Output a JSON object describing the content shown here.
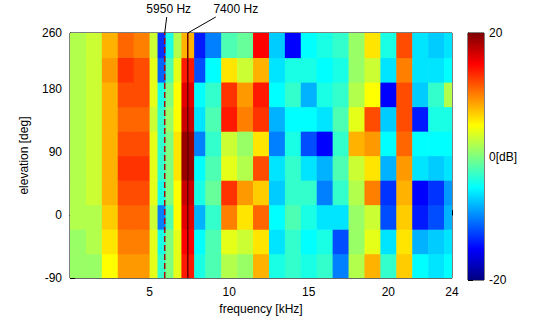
{
  "chart_data": {
    "type": "heatmap",
    "x_label": "frequency [kHz]",
    "y_label": "elevation [deg]",
    "xlim": [
      0,
      24
    ],
    "xticks": [
      5,
      10,
      15,
      20,
      24
    ],
    "ylim": [
      -90,
      260
    ],
    "yticks": [
      -90,
      0,
      90,
      180,
      260
    ],
    "grid": false,
    "x_edges": [
      0,
      1,
      2,
      3,
      4,
      5,
      5.5,
      6,
      6.5,
      7,
      7.8,
      8.5,
      9.5,
      10.5,
      11.5,
      12.5,
      13.5,
      14.5,
      15.5,
      16.5,
      17.5,
      18.5,
      19.5,
      20.5,
      21.5,
      22.5,
      23.5,
      24
    ],
    "y_edges": [
      -90,
      -55,
      -20,
      15,
      50,
      85,
      120,
      155,
      190,
      225,
      260
    ],
    "cells": [
      [
        1,
        1,
        5,
        9,
        9,
        4,
        -3,
        0,
        4,
        14,
        -4,
        -2,
        2,
        1,
        8,
        -4,
        -3,
        -4,
        -3,
        -10,
        2,
        8,
        -3,
        7,
        -5,
        -6,
        -5
      ],
      [
        1,
        2,
        6,
        10,
        10,
        4,
        -4,
        0,
        4,
        15,
        -5,
        -2,
        4,
        3,
        6,
        -6,
        -3,
        -5,
        -4,
        -12,
        1,
        4,
        -6,
        6,
        -8,
        -7,
        -6
      ],
      [
        2,
        2,
        7,
        11,
        11,
        3,
        -10,
        -2,
        5,
        16,
        -8,
        -3,
        10,
        6,
        11,
        -5,
        -2,
        -4,
        -6,
        -6,
        1,
        3,
        -12,
        7,
        -14,
        -12,
        -8
      ],
      [
        2,
        3,
        8,
        12,
        12,
        4,
        -4,
        0,
        5,
        17,
        -4,
        -1,
        13,
        9,
        7,
        -7,
        -3,
        -3,
        -10,
        -3,
        2,
        10,
        -13,
        8,
        -15,
        -13,
        -9
      ],
      [
        2,
        3,
        8,
        13,
        13,
        4,
        -3,
        0,
        6,
        19,
        -5,
        -2,
        4,
        2,
        12,
        -6,
        -3,
        -6,
        -8,
        -2,
        3,
        6,
        -8,
        9,
        -6,
        -7,
        -6
      ],
      [
        2,
        3,
        8,
        12,
        12,
        4,
        -3,
        0,
        6,
        19,
        -10,
        -3,
        3,
        1,
        6,
        -10,
        -4,
        -12,
        -15,
        -3,
        8,
        9,
        -5,
        11,
        -5,
        -5,
        -5
      ],
      [
        2,
        3,
        8,
        11,
        11,
        3,
        -3,
        1,
        5,
        17,
        -6,
        -2,
        14,
        10,
        13,
        -8,
        -5,
        -5,
        -6,
        -2,
        4,
        12,
        -7,
        12,
        -14,
        -4,
        -4
      ],
      [
        2,
        3,
        8,
        12,
        12,
        4,
        -4,
        0,
        5,
        16,
        -5,
        -3,
        13,
        9,
        14,
        -5,
        -3,
        -8,
        -4,
        -3,
        2,
        5,
        -15,
        12,
        -7,
        -3,
        2
      ],
      [
        2,
        3,
        9,
        13,
        12,
        4,
        -11,
        -2,
        4,
        14,
        -12,
        -5,
        6,
        3,
        8,
        -6,
        -4,
        -4,
        -5,
        -4,
        1,
        3,
        -6,
        10,
        -6,
        -6,
        -5
      ],
      [
        2,
        3,
        8,
        11,
        10,
        3,
        -13,
        -4,
        2,
        8,
        -14,
        -10,
        -2,
        -1,
        15,
        -7,
        -15,
        -5,
        -4,
        -3,
        1,
        6,
        -4,
        12,
        -6,
        -7,
        -6
      ]
    ],
    "colorbar": {
      "lim": [
        -20,
        20
      ],
      "ticks": [
        -20,
        {
          "value": 0,
          "label": "0[dB]"
        },
        20
      ]
    },
    "annotations": [
      {
        "x": 5.95,
        "label": "5950 Hz",
        "line_style": "dashed"
      },
      {
        "x": 7.4,
        "label": "7400 Hz",
        "line_style": "solid"
      }
    ]
  }
}
